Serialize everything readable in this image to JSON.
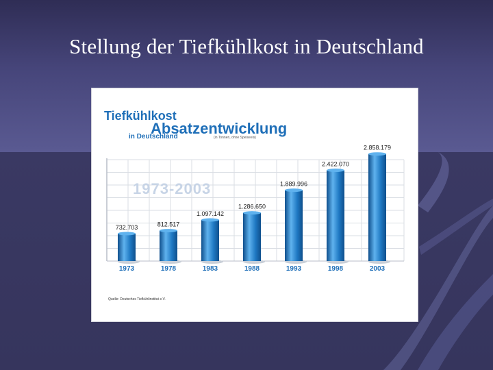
{
  "slide": {
    "title": "Stellung der Tiefkühlkost in Deutschland"
  },
  "chart_data": {
    "type": "bar",
    "title_line1": "Tiefkühlkost",
    "title_line2": "Absatzentwicklung",
    "title_line3": "in Deutschland",
    "subtitle": "(in Tonnen, ohne Speiseeis)",
    "period": "1973-2003",
    "source": "Quelle: Deutsches Tiefkühlinstitut e.V.",
    "categories": [
      "1973",
      "1978",
      "1983",
      "1988",
      "1993",
      "1998",
      "2003"
    ],
    "values": [
      732703,
      812517,
      1097142,
      1286650,
      1889996,
      2422070,
      2858179
    ],
    "value_labels": [
      "732.703",
      "812.517",
      "1.097.142",
      "1.286.650",
      "1.889.996",
      "2.422.070",
      "2.858.179"
    ],
    "ylim": [
      0,
      3200000
    ],
    "grid": true,
    "colors": {
      "bar": "#1e78c2",
      "bar_dark": "#0f4f8c",
      "bar_light": "#5fb2ee",
      "title_blue": "#1f6fb8",
      "grid": "#d9dde3",
      "watermark": "#c7d4e6"
    }
  }
}
